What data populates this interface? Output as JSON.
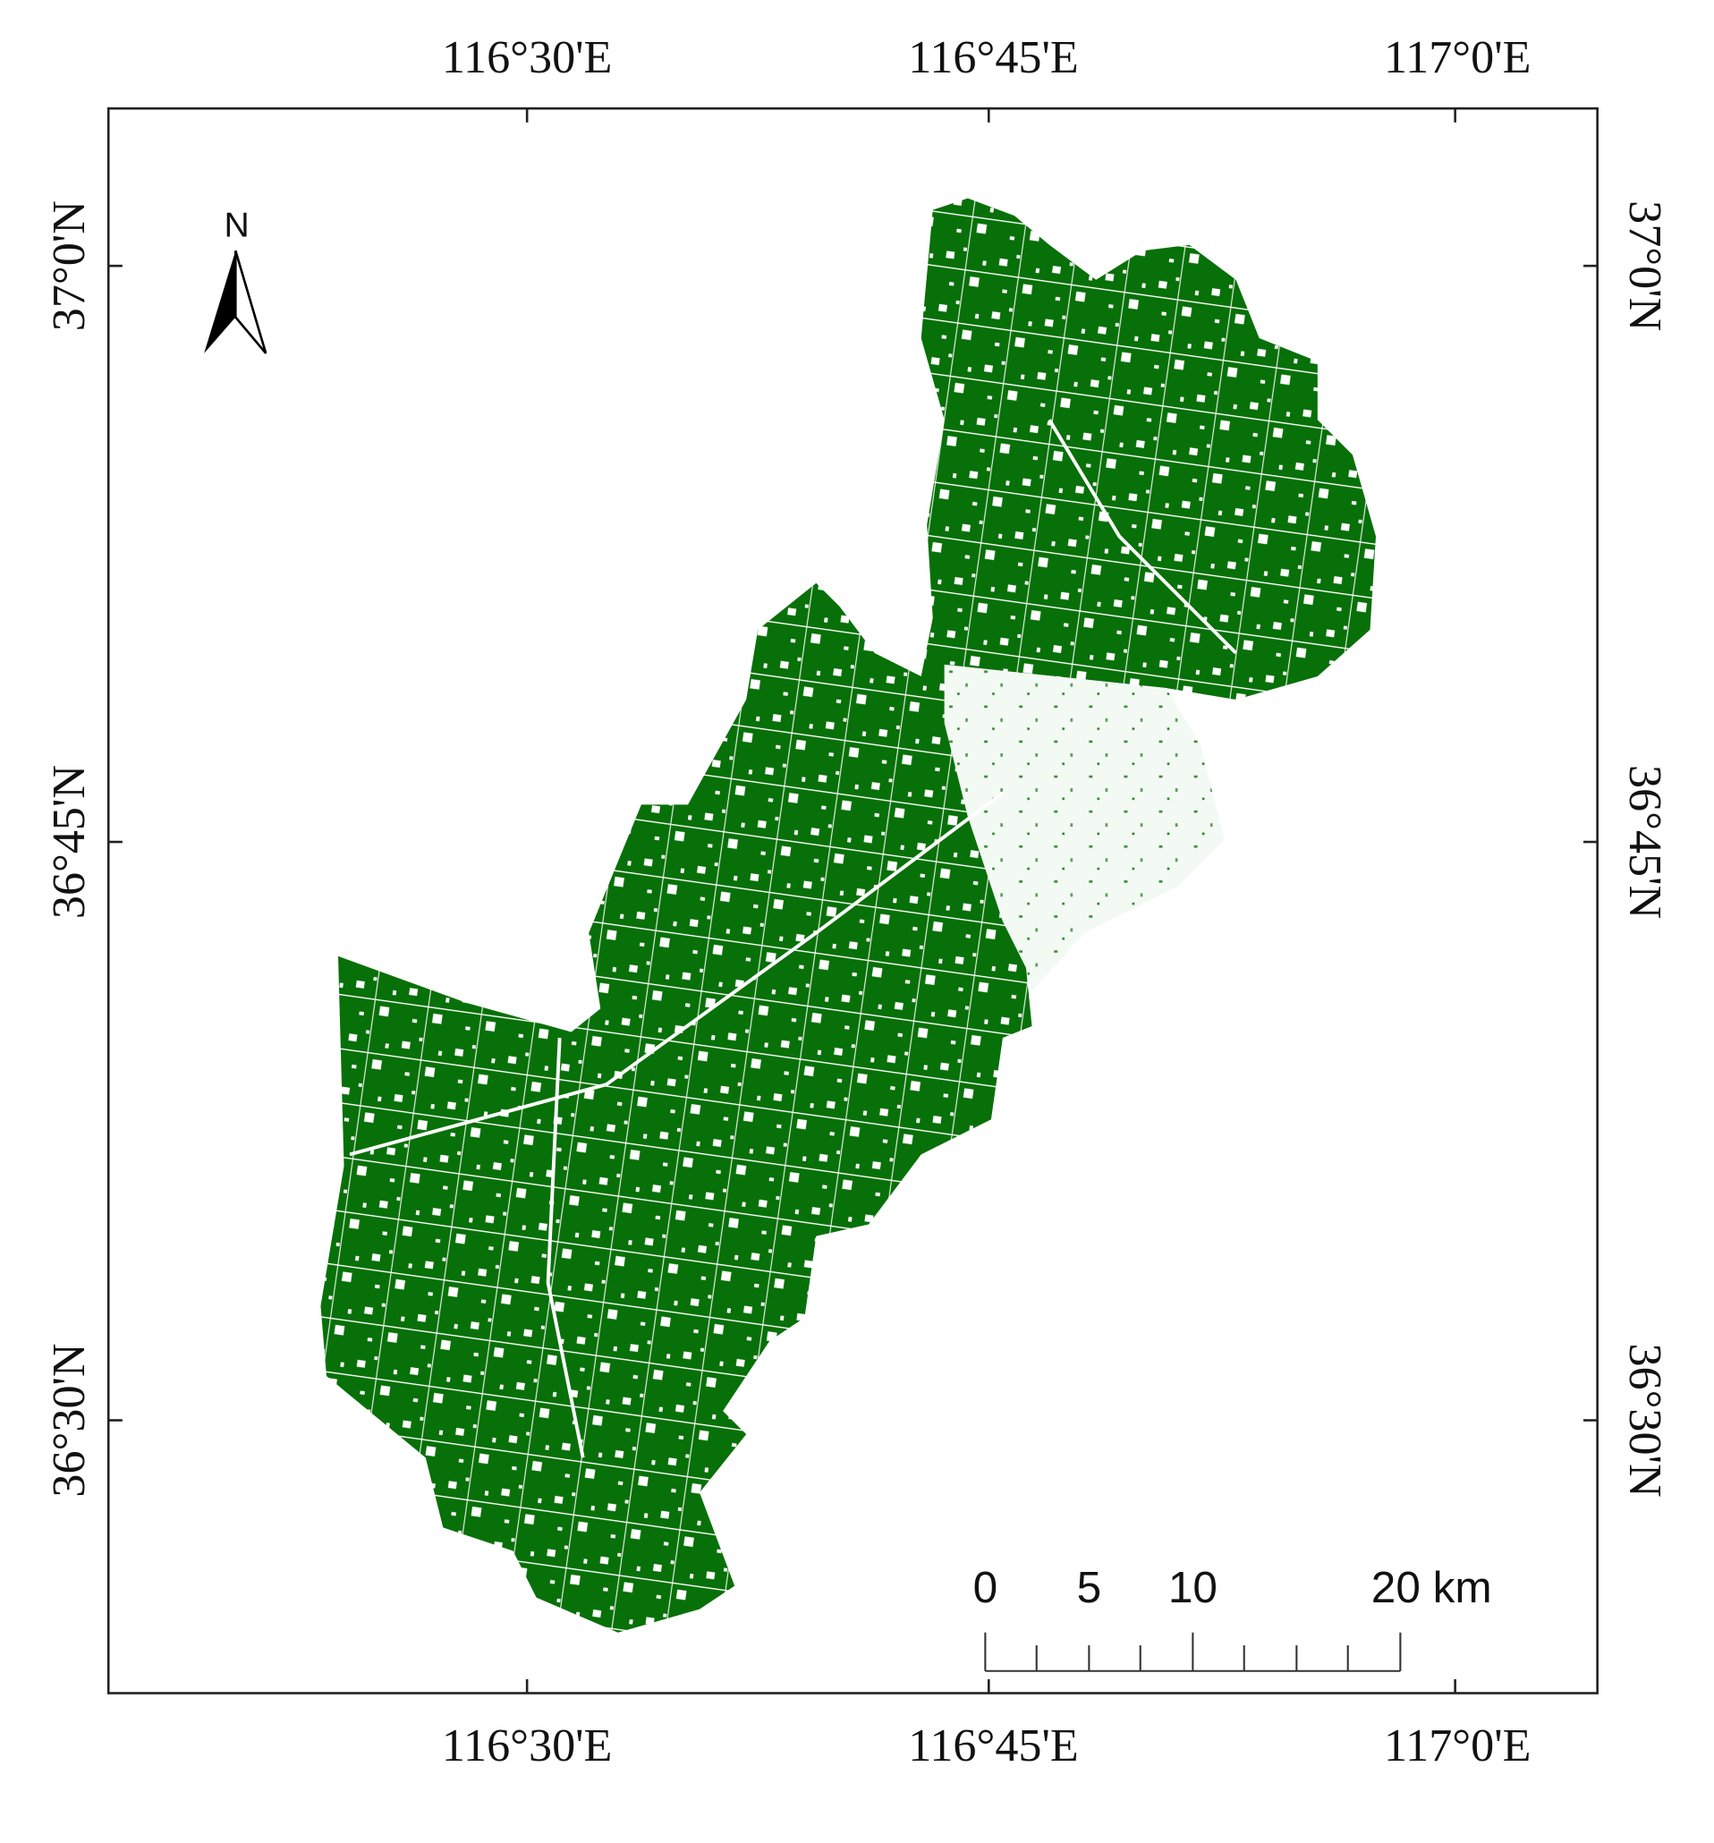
{
  "map": {
    "lon_labels": [
      "116°30'E",
      "116°45'E",
      "117°0'E"
    ],
    "lat_labels": [
      "37°0'N",
      "36°45'N",
      "36°30'N"
    ],
    "north": "N",
    "scale_bar": [
      "0",
      "5",
      "10",
      "20 km"
    ]
  }
}
